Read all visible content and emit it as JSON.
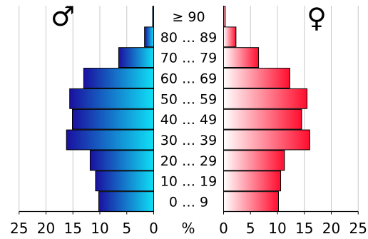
{
  "chart_data": {
    "type": "bar",
    "orientation": "horizontal",
    "subtype": "population-pyramid",
    "categories": [
      "0 … 9",
      "10 … 19",
      "20 … 29",
      "30 … 39",
      "40 … 49",
      "50 … 59",
      "60 … 69",
      "70 … 79",
      "80 … 89",
      "≥ 90"
    ],
    "series": [
      {
        "side": "left",
        "values": [
          10.2,
          10.8,
          11.8,
          16.2,
          15.1,
          15.6,
          13.0,
          6.5,
          1.7,
          0.2
        ],
        "color_outer": "#1a10a0",
        "color_inner": "#0fe0f5"
      },
      {
        "side": "right",
        "values": [
          10.2,
          10.6,
          11.3,
          16.0,
          14.5,
          15.5,
          12.3,
          6.5,
          2.3,
          0.3
        ],
        "color_outer": "#ff0d2e",
        "color_inner": "#ffffff"
      }
    ],
    "male_symbol": "♂",
    "female_symbol": "♀",
    "unit_label": "%",
    "xlim": [
      0,
      25
    ],
    "left_ticks": [
      "25",
      "20",
      "15",
      "10",
      "5",
      "0"
    ],
    "right_ticks": [
      "0",
      "5",
      "10",
      "15",
      "20",
      "25"
    ],
    "grid": true
  }
}
